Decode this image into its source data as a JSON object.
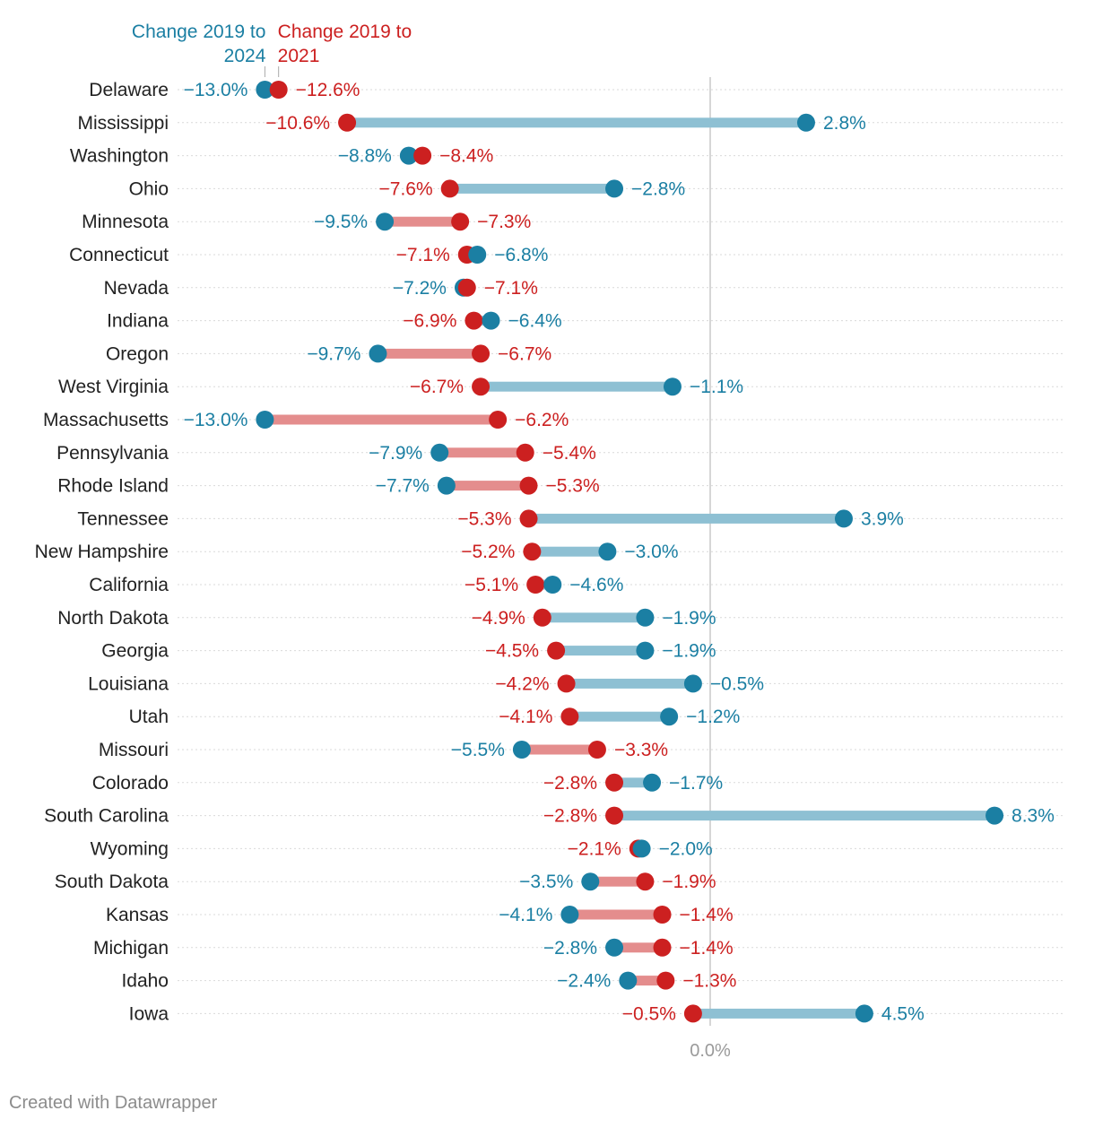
{
  "chart_data": {
    "type": "dumbbell",
    "title": "",
    "xlabel": "",
    "ylabel": "",
    "xlim": [
      -13.8,
      8.8
    ],
    "zero_label": "0.0%",
    "colors": {
      "2024": "#1b7fa3",
      "2021": "#cc2020",
      "bar_2024": "#8ec0d3",
      "bar_2021": "#e48d8d",
      "zero_line": "#bbbbbb",
      "grid": "#d9d9d9",
      "zero_text": "#9a9a9a",
      "label_text": "#222222"
    },
    "legend": [
      {
        "key": "2024",
        "lines": [
          "Change 2019 to",
          "2024"
        ]
      },
      {
        "key": "2021",
        "lines": [
          "Change 2019 to",
          "2021"
        ]
      }
    ],
    "series": [
      {
        "name": "Change 2019 to 2024",
        "key": "2024"
      },
      {
        "name": "Change 2019 to 2021",
        "key": "2021"
      }
    ],
    "categories": [
      "Delaware",
      "Mississippi",
      "Washington",
      "Ohio",
      "Minnesota",
      "Connecticut",
      "Nevada",
      "Indiana",
      "Oregon",
      "West Virginia",
      "Massachusetts",
      "Pennsylvania",
      "Rhode Island",
      "Tennessee",
      "New Hampshire",
      "California",
      "North Dakota",
      "Georgia",
      "Louisiana",
      "Utah",
      "Missouri",
      "Colorado",
      "South Carolina",
      "Wyoming",
      "South Dakota",
      "Kansas",
      "Michigan",
      "Idaho",
      "Iowa"
    ],
    "rows": [
      {
        "state": "Delaware",
        "v2021": -12.6,
        "v2024": -13.0,
        "l2021": "−12.6%",
        "l2024": "−13.0%"
      },
      {
        "state": "Mississippi",
        "v2021": -10.6,
        "v2024": 2.8,
        "l2021": "−10.6%",
        "l2024": "2.8%"
      },
      {
        "state": "Washington",
        "v2021": -8.4,
        "v2024": -8.8,
        "l2021": "−8.4%",
        "l2024": "−8.8%"
      },
      {
        "state": "Ohio",
        "v2021": -7.6,
        "v2024": -2.8,
        "l2021": "−7.6%",
        "l2024": "−2.8%"
      },
      {
        "state": "Minnesota",
        "v2021": -7.3,
        "v2024": -9.5,
        "l2021": "−7.3%",
        "l2024": "−9.5%"
      },
      {
        "state": "Connecticut",
        "v2021": -7.1,
        "v2024": -6.8,
        "l2021": "−7.1%",
        "l2024": "−6.8%"
      },
      {
        "state": "Nevada",
        "v2021": -7.1,
        "v2024": -7.2,
        "l2021": "−7.1%",
        "l2024": "−7.2%"
      },
      {
        "state": "Indiana",
        "v2021": -6.9,
        "v2024": -6.4,
        "l2021": "−6.9%",
        "l2024": "−6.4%"
      },
      {
        "state": "Oregon",
        "v2021": -6.7,
        "v2024": -9.7,
        "l2021": "−6.7%",
        "l2024": "−9.7%"
      },
      {
        "state": "West Virginia",
        "v2021": -6.7,
        "v2024": -1.1,
        "l2021": "−6.7%",
        "l2024": "−1.1%"
      },
      {
        "state": "Massachusetts",
        "v2021": -6.2,
        "v2024": -13.0,
        "l2021": "−6.2%",
        "l2024": "−13.0%"
      },
      {
        "state": "Pennsylvania",
        "v2021": -5.4,
        "v2024": -7.9,
        "l2021": "−5.4%",
        "l2024": "−7.9%"
      },
      {
        "state": "Rhode Island",
        "v2021": -5.3,
        "v2024": -7.7,
        "l2021": "−5.3%",
        "l2024": "−7.7%"
      },
      {
        "state": "Tennessee",
        "v2021": -5.3,
        "v2024": 3.9,
        "l2021": "−5.3%",
        "l2024": "3.9%"
      },
      {
        "state": "New Hampshire",
        "v2021": -5.2,
        "v2024": -3.0,
        "l2021": "−5.2%",
        "l2024": "−3.0%"
      },
      {
        "state": "California",
        "v2021": -5.1,
        "v2024": -4.6,
        "l2021": "−5.1%",
        "l2024": "−4.6%"
      },
      {
        "state": "North Dakota",
        "v2021": -4.9,
        "v2024": -1.9,
        "l2021": "−4.9%",
        "l2024": "−1.9%"
      },
      {
        "state": "Georgia",
        "v2021": -4.5,
        "v2024": -1.9,
        "l2021": "−4.5%",
        "l2024": "−1.9%"
      },
      {
        "state": "Louisiana",
        "v2021": -4.2,
        "v2024": -0.5,
        "l2021": "−4.2%",
        "l2024": "−0.5%"
      },
      {
        "state": "Utah",
        "v2021": -4.1,
        "v2024": -1.2,
        "l2021": "−4.1%",
        "l2024": "−1.2%"
      },
      {
        "state": "Missouri",
        "v2021": -3.3,
        "v2024": -5.5,
        "l2021": "−3.3%",
        "l2024": "−5.5%"
      },
      {
        "state": "Colorado",
        "v2021": -2.8,
        "v2024": -1.7,
        "l2021": "−2.8%",
        "l2024": "−1.7%"
      },
      {
        "state": "South Carolina",
        "v2021": -2.8,
        "v2024": 8.3,
        "l2021": "−2.8%",
        "l2024": "8.3%"
      },
      {
        "state": "Wyoming",
        "v2021": -2.1,
        "v2024": -2.0,
        "l2021": "−2.1%",
        "l2024": "−2.0%"
      },
      {
        "state": "South Dakota",
        "v2021": -1.9,
        "v2024": -3.5,
        "l2021": "−1.9%",
        "l2024": "−3.5%"
      },
      {
        "state": "Kansas",
        "v2021": -1.4,
        "v2024": -4.1,
        "l2021": "−1.4%",
        "l2024": "−4.1%"
      },
      {
        "state": "Michigan",
        "v2021": -1.4,
        "v2024": -2.8,
        "l2021": "−1.4%",
        "l2024": "−2.8%"
      },
      {
        "state": "Idaho",
        "v2021": -1.3,
        "v2024": -2.4,
        "l2021": "−1.3%",
        "l2024": "−2.4%"
      },
      {
        "state": "Iowa",
        "v2021": -0.5,
        "v2024": 4.5,
        "l2021": "−0.5%",
        "l2024": "4.5%"
      }
    ]
  },
  "footer": {
    "credit": "Created with Datawrapper"
  }
}
